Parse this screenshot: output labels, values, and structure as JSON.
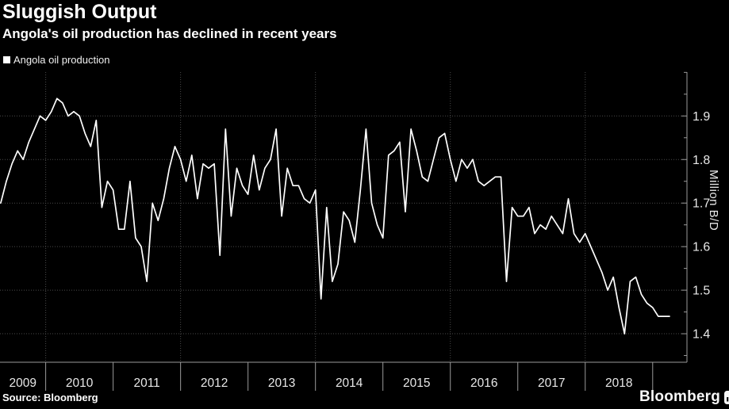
{
  "colors": {
    "background": "#000000",
    "line": "#ffffff",
    "grid": "#4a4a4a",
    "axis": "#9a9a9a",
    "tick_label": "#e8e8e8",
    "text": "#ffffff"
  },
  "branding": {
    "wordmark": "Bloomberg"
  },
  "chart_data": {
    "type": "line",
    "title": "Sluggish Output",
    "subtitle": "Angola's oil production has declined in recent years",
    "legend": [
      "Angola oil production"
    ],
    "legend_position": "top-left",
    "ylabel": "Million B/D",
    "ylim": [
      1.335,
      2.0
    ],
    "y_ticks": [
      1.4,
      1.5,
      1.6,
      1.7,
      1.8,
      1.9
    ],
    "y_minor_ticks": [
      1.35,
      1.45,
      1.55,
      1.65,
      1.75,
      1.85,
      1.95,
      2.0
    ],
    "x_tick_years": [
      "2009",
      "2010",
      "2011",
      "2012",
      "2013",
      "2014",
      "2015",
      "2016",
      "2017",
      "2018"
    ],
    "grid": "dotted; horizontal at each 0.1, vertical at alternate year boundaries (2010,2012,2014,2016,2018)",
    "y_axis_side": "right",
    "source": "Source: Bloomberg",
    "series": [
      {
        "name": "Angola oil production",
        "color": "#ffffff",
        "x_start": "2009-05",
        "frequency": "monthly",
        "values": [
          1.7,
          1.75,
          1.79,
          1.82,
          1.8,
          1.84,
          1.87,
          1.9,
          1.89,
          1.91,
          1.94,
          1.93,
          1.9,
          1.91,
          1.9,
          1.86,
          1.83,
          1.89,
          1.69,
          1.75,
          1.73,
          1.64,
          1.64,
          1.75,
          1.62,
          1.6,
          1.52,
          1.7,
          1.66,
          1.71,
          1.78,
          1.83,
          1.8,
          1.75,
          1.81,
          1.71,
          1.79,
          1.78,
          1.79,
          1.58,
          1.87,
          1.67,
          1.78,
          1.74,
          1.72,
          1.81,
          1.73,
          1.78,
          1.8,
          1.87,
          1.67,
          1.78,
          1.74,
          1.74,
          1.71,
          1.7,
          1.73,
          1.48,
          1.69,
          1.52,
          1.56,
          1.68,
          1.66,
          1.61,
          1.73,
          1.87,
          1.7,
          1.65,
          1.62,
          1.81,
          1.82,
          1.84,
          1.68,
          1.87,
          1.82,
          1.76,
          1.75,
          1.8,
          1.85,
          1.86,
          1.8,
          1.75,
          1.8,
          1.78,
          1.8,
          1.75,
          1.74,
          1.75,
          1.76,
          1.76,
          1.52,
          1.69,
          1.67,
          1.67,
          1.69,
          1.63,
          1.65,
          1.64,
          1.67,
          1.65,
          1.63,
          1.71,
          1.63,
          1.61,
          1.63,
          1.6,
          1.57,
          1.54,
          1.5,
          1.53,
          1.46,
          1.4,
          1.52,
          1.53,
          1.49,
          1.47,
          1.46,
          1.44,
          1.44,
          1.44
        ]
      }
    ]
  }
}
